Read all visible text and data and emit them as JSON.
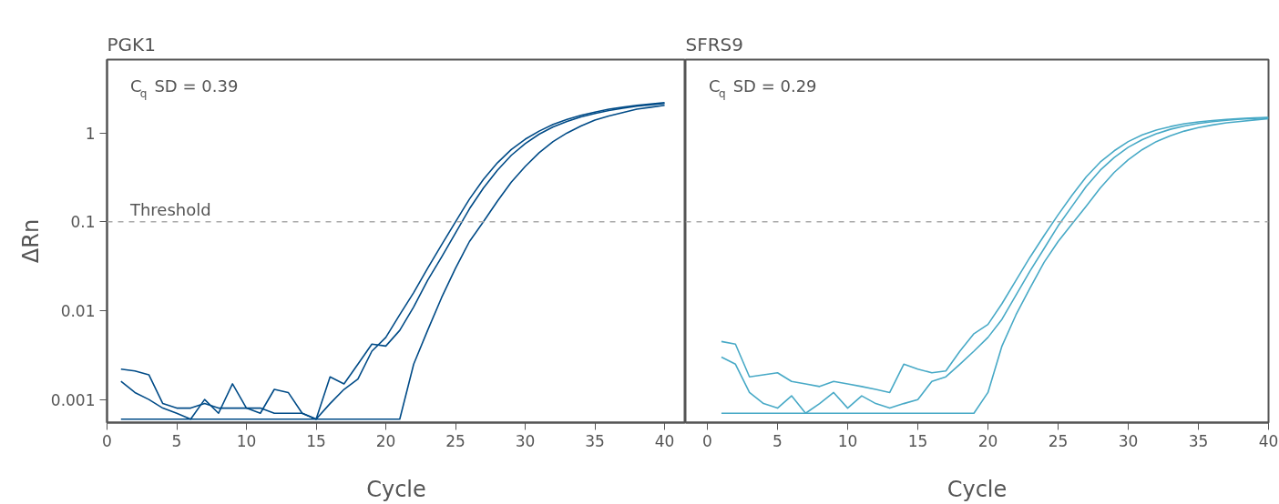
{
  "chart_data": [
    {
      "type": "line",
      "title": "PGK1",
      "xlabel": "Cycle",
      "ylabel": "ΔRn",
      "log": "y",
      "grid": false,
      "line_style": "solid",
      "marker": "none",
      "x": [
        1,
        2,
        3,
        4,
        5,
        6,
        7,
        8,
        9,
        10,
        11,
        12,
        13,
        14,
        15,
        16,
        17,
        18,
        19,
        20,
        21,
        22,
        23,
        24,
        25,
        26,
        27,
        28,
        29,
        30,
        31,
        32,
        33,
        34,
        35,
        36,
        37,
        38,
        39,
        40
      ],
      "xlim": [
        0,
        41.5
      ],
      "xticks": [
        0,
        5,
        10,
        15,
        20,
        25,
        30,
        35,
        40
      ],
      "ylim": [
        0.00055,
        6.7
      ],
      "yticks": [
        0.001,
        0.01,
        0.1,
        1
      ],
      "series": [
        {
          "color": "#004b87",
          "values": [
            0.0022,
            0.0021,
            0.0019,
            0.0009,
            0.0008,
            0.0008,
            0.0009,
            0.0008,
            0.0008,
            0.0008,
            0.0008,
            0.0007,
            0.0007,
            0.0007,
            0.0006,
            0.0009,
            0.0013,
            0.0017,
            0.0035,
            0.005,
            0.009,
            0.016,
            0.03,
            0.055,
            0.1,
            0.18,
            0.3,
            0.46,
            0.65,
            0.85,
            1.05,
            1.25,
            1.42,
            1.58,
            1.72,
            1.85,
            1.95,
            2.05,
            2.12,
            2.2
          ]
        },
        {
          "color": "#004b87",
          "values": [
            0.0016,
            0.0012,
            0.001,
            0.0008,
            0.0007,
            0.0006,
            0.001,
            0.0007,
            0.0015,
            0.0008,
            0.0007,
            0.0013,
            0.0012,
            0.0007,
            0.0006,
            0.0018,
            0.0015,
            0.0025,
            0.0042,
            0.004,
            0.006,
            0.011,
            0.022,
            0.04,
            0.075,
            0.14,
            0.24,
            0.38,
            0.56,
            0.76,
            0.97,
            1.17,
            1.35,
            1.52,
            1.66,
            1.79,
            1.9,
            2.0,
            2.08,
            2.15
          ]
        },
        {
          "color": "#004b87",
          "values": [
            0.0006,
            0.0006,
            0.0006,
            0.0006,
            0.0006,
            0.0006,
            0.0006,
            0.0006,
            0.0006,
            0.0006,
            0.0006,
            0.0006,
            0.0006,
            0.0006,
            0.0006,
            0.0006,
            0.0006,
            0.0006,
            0.0006,
            0.0006,
            0.0006,
            0.0025,
            0.006,
            0.014,
            0.03,
            0.06,
            0.1,
            0.17,
            0.28,
            0.42,
            0.6,
            0.8,
            1.0,
            1.2,
            1.4,
            1.55,
            1.7,
            1.85,
            1.95,
            2.05
          ]
        }
      ],
      "ref_lines": [
        {
          "axis": "y",
          "value": 0.1,
          "label": "Threshold",
          "color": "#aaaaaa",
          "line_style": "dashed"
        }
      ],
      "annotations": [
        "C$_{q}$ SD = 0.39"
      ]
    },
    {
      "type": "line",
      "title": "SFRS9",
      "xlabel": "Cycle",
      "log": "y",
      "grid": false,
      "line_style": "solid",
      "marker": "none",
      "tick_labels": "x",
      "x": [
        1,
        2,
        3,
        4,
        5,
        6,
        7,
        8,
        9,
        10,
        11,
        12,
        13,
        14,
        15,
        16,
        17,
        18,
        19,
        20,
        21,
        22,
        23,
        24,
        25,
        26,
        27,
        28,
        29,
        30,
        31,
        32,
        33,
        34,
        35,
        36,
        37,
        38,
        39,
        40
      ],
      "xlim": [
        -1.56,
        40
      ],
      "xticks": [
        0,
        5,
        10,
        15,
        20,
        25,
        30,
        35,
        40
      ],
      "ylim": [
        0.00055,
        6.7
      ],
      "yticks": [
        0.001,
        0.01,
        0.1,
        1
      ],
      "series": [
        {
          "color": "#47a9c6",
          "values": [
            0.0045,
            0.0042,
            0.0018,
            0.0019,
            0.002,
            0.0016,
            0.0015,
            0.0014,
            0.0016,
            0.0015,
            0.0014,
            0.0013,
            0.0012,
            0.0025,
            0.0022,
            0.002,
            0.0021,
            0.0035,
            0.0055,
            0.007,
            0.012,
            0.022,
            0.04,
            0.07,
            0.12,
            0.2,
            0.32,
            0.47,
            0.63,
            0.8,
            0.95,
            1.08,
            1.18,
            1.27,
            1.33,
            1.38,
            1.42,
            1.45,
            1.48,
            1.5
          ]
        },
        {
          "color": "#47a9c6",
          "values": [
            0.003,
            0.0025,
            0.0012,
            0.0009,
            0.0008,
            0.0011,
            0.0007,
            0.0009,
            0.0012,
            0.0008,
            0.0011,
            0.0009,
            0.0008,
            0.0009,
            0.001,
            0.0016,
            0.0018,
            0.0025,
            0.0035,
            0.005,
            0.008,
            0.015,
            0.028,
            0.05,
            0.09,
            0.15,
            0.25,
            0.38,
            0.53,
            0.69,
            0.84,
            0.98,
            1.1,
            1.2,
            1.28,
            1.34,
            1.39,
            1.43,
            1.46,
            1.48
          ]
        },
        {
          "color": "#47a9c6",
          "values": [
            0.0007,
            0.0007,
            0.0007,
            0.0007,
            0.0007,
            0.0007,
            0.0007,
            0.0007,
            0.0007,
            0.0007,
            0.0007,
            0.0007,
            0.0007,
            0.0007,
            0.0007,
            0.0007,
            0.0007,
            0.0007,
            0.0007,
            0.0012,
            0.004,
            0.009,
            0.018,
            0.035,
            0.06,
            0.095,
            0.15,
            0.24,
            0.36,
            0.5,
            0.65,
            0.8,
            0.93,
            1.05,
            1.15,
            1.23,
            1.3,
            1.35,
            1.4,
            1.45
          ]
        }
      ],
      "ref_lines": [
        {
          "axis": "y",
          "value": 0.1,
          "color": "#aaaaaa",
          "line_style": "dashed"
        }
      ],
      "annotations": [
        "C$_{q}$ SD = 0.29"
      ]
    }
  ]
}
